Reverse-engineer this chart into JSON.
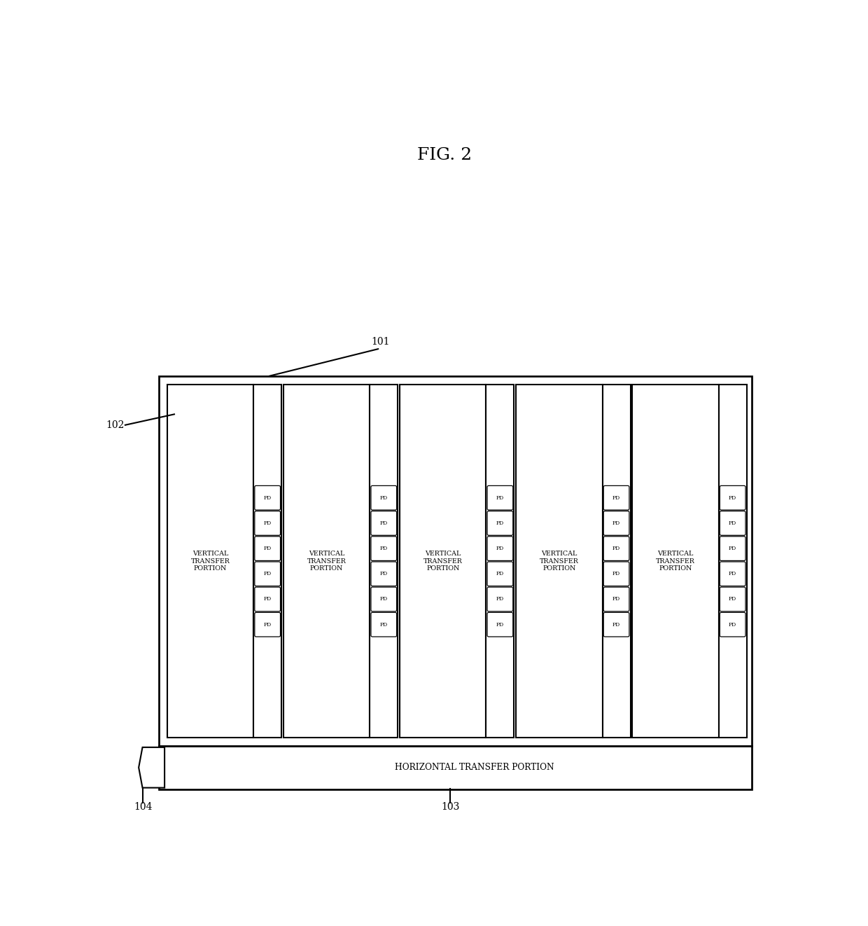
{
  "title": "FIG. 2",
  "title_fontsize": 18,
  "bg_color": "#ffffff",
  "line_color": "#000000",
  "fig_width": 12.4,
  "fig_height": 13.22,
  "num_pd_rows": 6,
  "num_columns": 5,
  "label_101": "101",
  "label_102": "102",
  "label_103": "103",
  "label_104": "104",
  "vt_label": "VERTICAL\nTRANSFER\nPORTION",
  "ht_label": "HORIZONTAL TRANSFER PORTION",
  "pd_label": "PD"
}
